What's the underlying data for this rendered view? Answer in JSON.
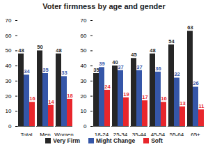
{
  "chart_data": {
    "type": "bar",
    "title": "Voter firmness by age and gender",
    "categories": [
      "Total",
      "Men",
      "Women",
      null,
      "18-24",
      "25-34",
      "35-44",
      "45-54",
      "55-64",
      "65+"
    ],
    "series": [
      {
        "name": "Very Firm",
        "color": "#262626",
        "values": [
          48,
          50,
          48,
          null,
          35,
          40,
          45,
          48,
          54,
          63
        ]
      },
      {
        "name": "Might Change",
        "color": "#3556a8",
        "values": [
          34,
          35,
          33,
          null,
          39,
          37,
          37,
          36,
          32,
          26
        ]
      },
      {
        "name": "Soft",
        "color": "#e8262c",
        "values": [
          16,
          14,
          18,
          null,
          24,
          19,
          17,
          16,
          13,
          11
        ]
      }
    ],
    "ylim": [
      0,
      70
    ],
    "yticks": [
      0,
      10,
      20,
      30,
      40,
      50,
      60,
      70
    ],
    "data_labels": true,
    "legend": "bottom",
    "grid": false
  }
}
